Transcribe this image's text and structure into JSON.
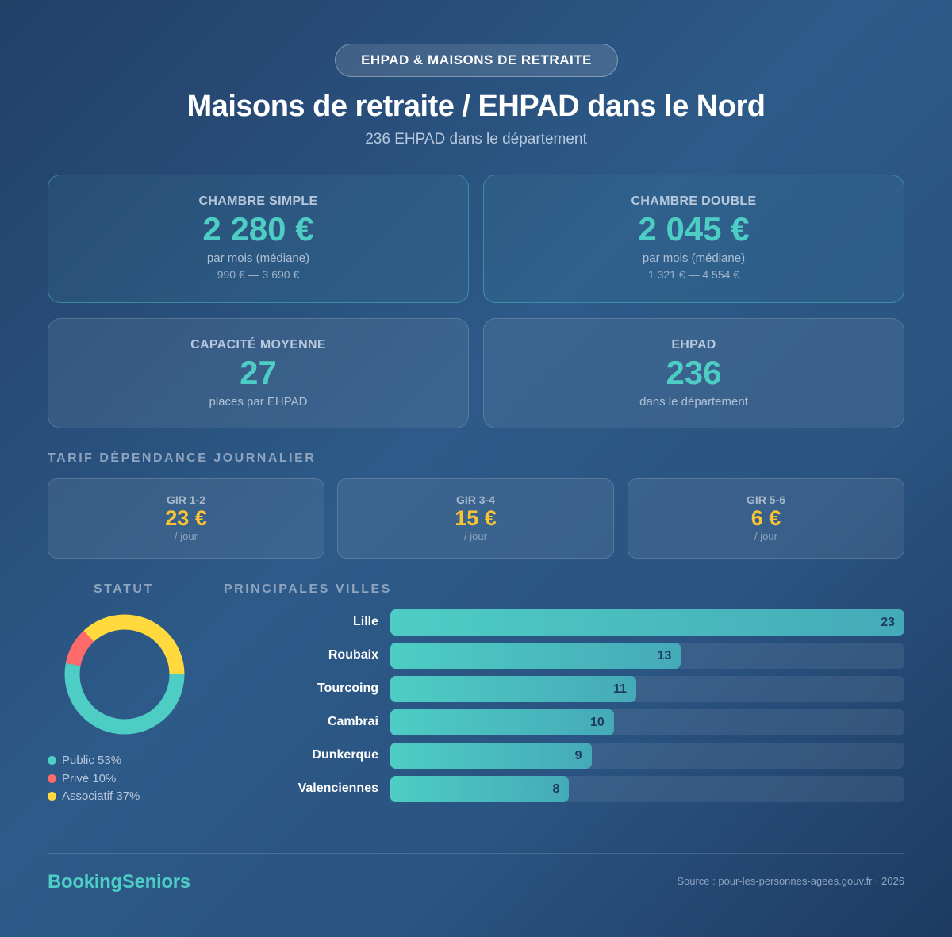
{
  "header": {
    "badge": "EHPAD & MAISONS DE RETRAITE",
    "title": "Maisons de retraite / EHPAD dans le Nord",
    "subtitle": "236 EHPAD dans le département"
  },
  "cards": [
    {
      "label": "CHAMBRE SIMPLE",
      "value": "2 280 €",
      "sub": "par mois (médiane)",
      "range": "990 € — 3 690 €"
    },
    {
      "label": "CHAMBRE DOUBLE",
      "value": "2 045 €",
      "sub": "par mois (médiane)",
      "range": "1 321 € — 4 554 €"
    },
    {
      "label": "CAPACITÉ MOYENNE",
      "value": "27",
      "sub": "places par EHPAD"
    },
    {
      "label": "EHPAD",
      "value": "236",
      "sub": "dans le département"
    }
  ],
  "tarif": {
    "title": "TARIF DÉPENDANCE JOURNALIER",
    "items": [
      {
        "label": "GIR 1-2",
        "value": "23 €",
        "unit": "/ jour"
      },
      {
        "label": "GIR 3-4",
        "value": "15 €",
        "unit": "/ jour"
      },
      {
        "label": "GIR 5-6",
        "value": "6 €",
        "unit": "/ jour"
      }
    ]
  },
  "chart_data": [
    {
      "type": "pie",
      "title": "STATUT",
      "donut": true,
      "slices": [
        {
          "name": "Public",
          "value": 53,
          "label": "Public 53%",
          "color": "#4ecdc4"
        },
        {
          "name": "Privé",
          "value": 10,
          "label": "Privé 10%",
          "color": "#ff6b6b"
        },
        {
          "name": "Associatif",
          "value": 37,
          "label": "Associatif 37%",
          "color": "#ffd93d"
        }
      ]
    },
    {
      "type": "bar",
      "orientation": "horizontal",
      "title": "PRINCIPALES VILLES",
      "categories": [
        "Lille",
        "Roubaix",
        "Tourcoing",
        "Cambrai",
        "Dunkerque",
        "Valenciennes"
      ],
      "values": [
        23,
        13,
        11,
        10,
        9,
        8
      ],
      "xlim": [
        0,
        23
      ]
    }
  ],
  "footer": {
    "brand": "BookingSeniors",
    "source": "Source : pour-les-personnes-agees.gouv.fr · 2026"
  }
}
